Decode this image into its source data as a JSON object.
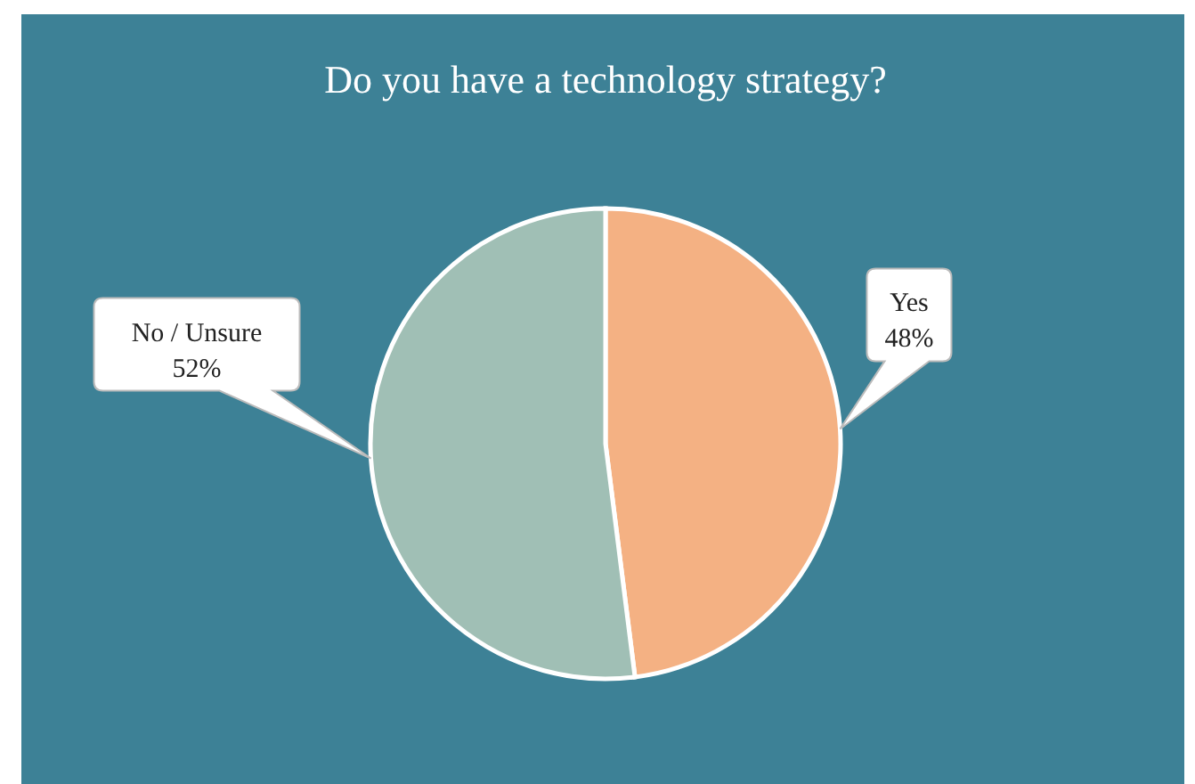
{
  "chart_data": {
    "type": "pie",
    "title": "Do you have a technology strategy?",
    "categories": [
      "Yes",
      "No / Unsure"
    ],
    "values": [
      48,
      52
    ],
    "colors": [
      "#f4b183",
      "#a0bfb5"
    ],
    "value_labels": [
      "48%",
      "52%"
    ],
    "legend": false
  }
}
